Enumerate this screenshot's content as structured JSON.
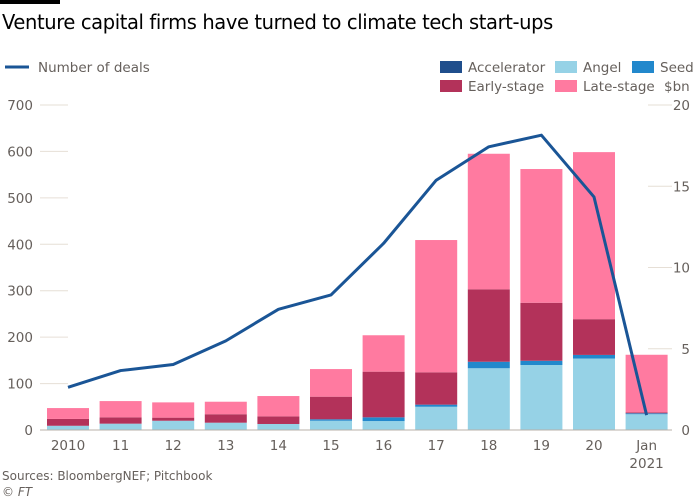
{
  "header": {
    "title": "Venture capital firms have turned to climate tech start-ups"
  },
  "legend": {
    "line_label": "Number of deals",
    "items": [
      {
        "label": "Accelerator",
        "key": "accelerator"
      },
      {
        "label": "Angel",
        "key": "angel"
      },
      {
        "label": "Seed",
        "key": "seed"
      },
      {
        "label": "Early-stage",
        "key": "early"
      },
      {
        "label": "Late-stage",
        "key": "late"
      }
    ],
    "unit_label": "$bn"
  },
  "colors": {
    "accelerator": "#1f4e8c",
    "angel": "#96d2e6",
    "seed": "#2288cc",
    "early": "#b3325a",
    "late": "#ff7aa0",
    "line": "#1a5596",
    "grid": "#e6dfd6",
    "axis": "#b8b0a8"
  },
  "footer": {
    "source": "Sources: BloombergNEF; Pitchbook",
    "copyright": "© FT"
  },
  "chart_data": {
    "type": "bar",
    "title": "Venture capital firms have turned to climate tech start-ups",
    "categories": [
      "2010",
      "11",
      "12",
      "13",
      "14",
      "15",
      "16",
      "17",
      "18",
      "19",
      "20",
      "Jan 2021"
    ],
    "category_labels": [
      [
        "2010"
      ],
      [
        "11"
      ],
      [
        "12"
      ],
      [
        "13"
      ],
      [
        "14"
      ],
      [
        "15"
      ],
      [
        "16"
      ],
      [
        "17"
      ],
      [
        "18"
      ],
      [
        "19"
      ],
      [
        "20"
      ],
      [
        "Jan",
        "2021"
      ]
    ],
    "stacked": true,
    "series": [
      {
        "name": "Angel",
        "key": "angel",
        "axis": "right",
        "values": [
          0.26,
          0.39,
          0.57,
          0.45,
          0.37,
          0.57,
          0.55,
          1.43,
          3.8,
          4.0,
          4.4,
          0.97
        ]
      },
      {
        "name": "Accelerator",
        "key": "accelerator",
        "axis": "right",
        "values": [
          0,
          0,
          0,
          0,
          0,
          0,
          0,
          0,
          0,
          0,
          0,
          0
        ]
      },
      {
        "name": "Seed",
        "key": "seed",
        "axis": "right",
        "values": [
          0,
          0,
          0,
          0,
          0,
          0.09,
          0.23,
          0.13,
          0.4,
          0.26,
          0.22,
          0.06
        ]
      },
      {
        "name": "Early-stage",
        "key": "early",
        "axis": "right",
        "values": [
          0.42,
          0.39,
          0.19,
          0.52,
          0.47,
          1.39,
          2.81,
          1.99,
          4.46,
          3.57,
          2.2,
          0.06
        ]
      },
      {
        "name": "Late-stage",
        "key": "late",
        "axis": "right",
        "values": [
          0.67,
          1.0,
          0.94,
          0.77,
          1.25,
          1.7,
          2.24,
          8.14,
          8.34,
          8.23,
          10.28,
          3.54
        ]
      }
    ],
    "line_series": {
      "name": "Number of deals",
      "axis": "left",
      "values": [
        92,
        128,
        141,
        192,
        260,
        291,
        402,
        538,
        610,
        635,
        502,
        32
      ]
    },
    "left_axis": {
      "label": "Number of deals",
      "ylim": [
        0,
        700
      ],
      "ticks": [
        0,
        100,
        200,
        300,
        400,
        500,
        600,
        700
      ]
    },
    "right_axis": {
      "label": "$bn",
      "ylim": [
        0,
        20
      ],
      "ticks": [
        0,
        5,
        10,
        15,
        20
      ]
    },
    "grid": true,
    "legend_position": "top"
  }
}
